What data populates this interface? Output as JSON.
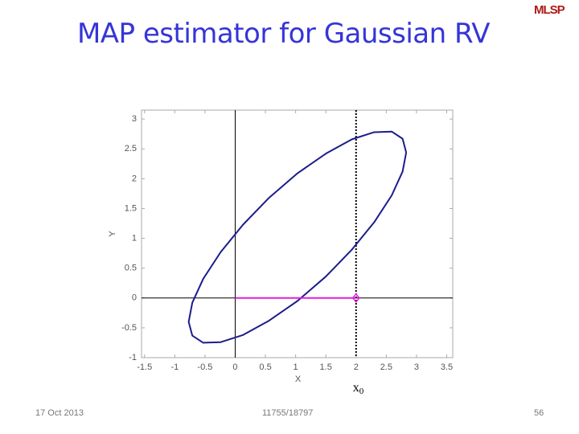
{
  "header": {
    "title": "MAP estimator for Gaussian RV",
    "logo": "MLSP"
  },
  "footer": {
    "date": "17 Oct 2013",
    "course": "11755/18797",
    "page": "56"
  },
  "chart_data": {
    "type": "line",
    "xlabel": "X",
    "ylabel": "Y",
    "xlim": [
      -1.55,
      3.6
    ],
    "ylim": [
      -1,
      3.15
    ],
    "xticks": [
      -1.5,
      -1,
      -0.5,
      0,
      0.5,
      1,
      1.5,
      2,
      2.5,
      3,
      3.5
    ],
    "yticks": [
      -1,
      -0.5,
      0,
      0.5,
      1,
      1.5,
      2,
      2.5,
      3
    ],
    "series": [
      {
        "color": "#1c1c8c",
        "x": [
          2.83,
          2.77,
          2.59,
          2.3,
          1.93,
          1.5,
          1.03,
          0.56,
          0.13,
          -0.24,
          -0.53,
          -0.71,
          -0.77,
          -0.71,
          -0.53,
          -0.24,
          0.13,
          0.56,
          1.03,
          1.5,
          1.93,
          2.3,
          2.59,
          2.77,
          2.83
        ],
        "values": [
          2.44,
          2.67,
          2.79,
          2.78,
          2.66,
          2.42,
          2.09,
          1.68,
          1.23,
          0.77,
          0.32,
          -0.08,
          -0.4,
          -0.63,
          -0.75,
          -0.74,
          -0.62,
          -0.38,
          -0.05,
          0.36,
          0.81,
          1.27,
          1.72,
          2.12,
          2.44
        ]
      },
      {
        "color": "#e020e0",
        "x": [
          0,
          2
        ],
        "values": [
          0,
          0
        ],
        "marker": "diamond"
      }
    ],
    "annotations": [
      {
        "text": "x",
        "sub": "0",
        "x": 2
      }
    ]
  }
}
